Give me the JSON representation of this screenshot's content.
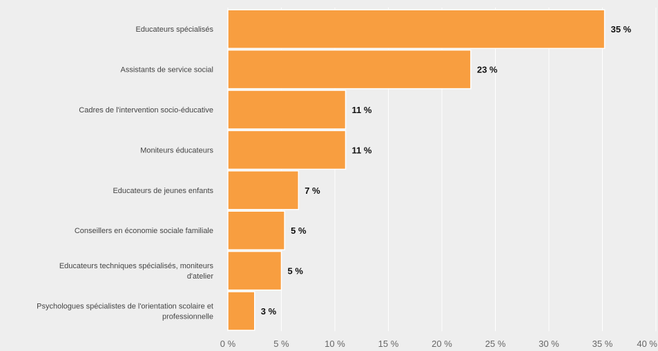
{
  "chart_data": {
    "type": "bar",
    "orientation": "horizontal",
    "categories": [
      "Educateurs spécialisés",
      "Assistants de service social",
      "Cadres de l'intervention socio-éducative",
      "Moniteurs éducateurs",
      "Educateurs de jeunes enfants",
      "Conseillers en économie sociale familiale",
      "Educateurs techniques spécialisés, moniteurs d'atelier",
      "Psychologues spécialistes de l'orientation scolaire et professionnelle"
    ],
    "category_lines": [
      [
        "Educateurs spécialisés"
      ],
      [
        "Assistants de service social"
      ],
      [
        "Cadres de l'intervention socio-éducative"
      ],
      [
        "Moniteurs éducateurs"
      ],
      [
        "Educateurs de jeunes enfants"
      ],
      [
        "Conseillers en économie sociale familiale"
      ],
      [
        "Educateurs techniques spécialisés, moniteurs",
        "d'atelier"
      ],
      [
        "Psychologues spécialistes de l'orientation scolaire et",
        "professionnelle"
      ]
    ],
    "values": [
      35.2,
      22.7,
      11.0,
      11.0,
      6.6,
      5.3,
      5.0,
      2.5
    ],
    "data_labels": [
      "35 %",
      "23 %",
      "11 %",
      "11 %",
      "7 %",
      "5 %",
      "5 %",
      "3 %"
    ],
    "x_ticks": [
      0,
      5,
      10,
      15,
      20,
      25,
      30,
      35,
      40
    ],
    "x_tick_labels": [
      "0 %",
      "5 %",
      "10 %",
      "15 %",
      "20 %",
      "25 %",
      "30 %",
      "35 %",
      "40 %"
    ],
    "xlim": [
      0,
      40
    ],
    "grid": true,
    "title": "",
    "xlabel": "",
    "ylabel": "",
    "colors": {
      "bar": "#f89e40",
      "bar_stroke": "#ffffff",
      "background": "#eeeeee",
      "grid": "#ffffff"
    }
  }
}
